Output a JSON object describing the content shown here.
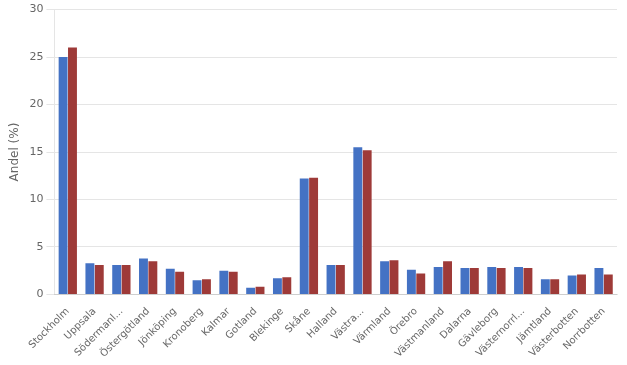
{
  "chart_data": {
    "type": "bar",
    "categories": [
      "Stockholm",
      "Uppsala",
      "Södermanl...",
      "Östergötland",
      "Jönköping",
      "Kronoberg",
      "Kalmar",
      "Gotland",
      "Blekinge",
      "Skåne",
      "Halland",
      "Västra...",
      "Värmland",
      "Örebro",
      "Västmanland",
      "Dalarna",
      "Gävleborg",
      "Västernorrl...",
      "Jämtland",
      "Västerbotten",
      "Norrbotten"
    ],
    "series": [
      {
        "color": "#4472C4",
        "values": [
          25.0,
          3.3,
          3.1,
          3.8,
          2.7,
          1.5,
          2.5,
          0.7,
          1.7,
          12.2,
          3.1,
          15.5,
          3.5,
          2.6,
          2.9,
          2.8,
          2.9,
          2.9,
          1.6,
          2.0,
          2.8
        ]
      },
      {
        "color": "#9E3A38",
        "values": [
          26.0,
          3.1,
          3.1,
          3.5,
          2.4,
          1.6,
          2.4,
          0.8,
          1.8,
          12.3,
          3.1,
          15.2,
          3.6,
          2.2,
          3.5,
          2.8,
          2.8,
          2.8,
          1.6,
          2.1,
          2.1
        ]
      }
    ],
    "ylabel": "Andel (%)",
    "ylim": [
      0,
      30
    ],
    "yticks": [
      0,
      5,
      10,
      15,
      20,
      25,
      30
    ],
    "grid": true
  }
}
